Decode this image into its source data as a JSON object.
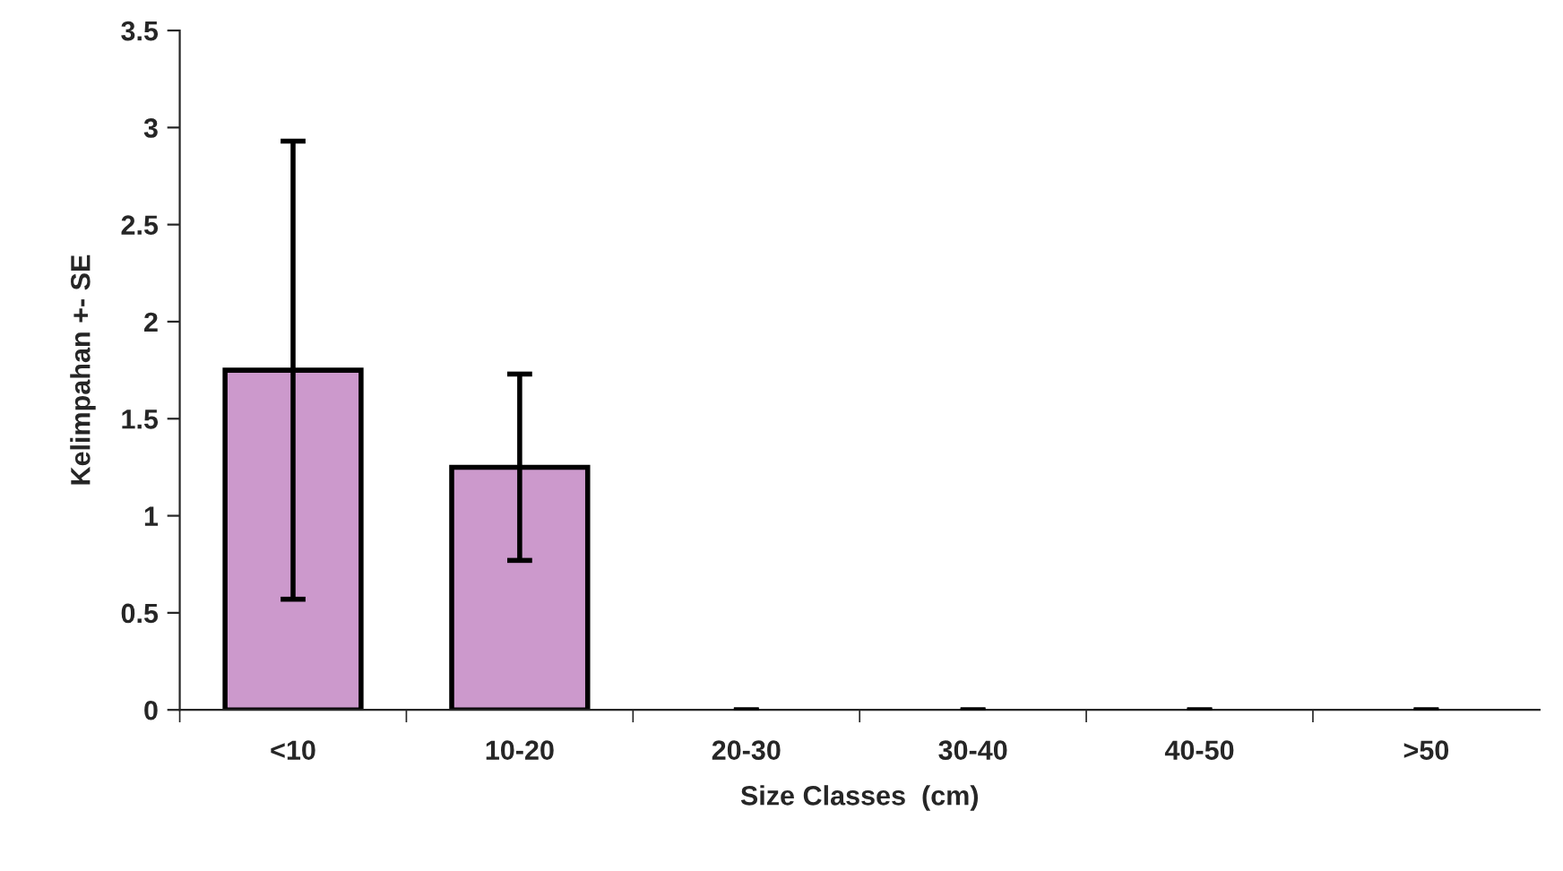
{
  "chart_data": {
    "type": "bar",
    "xlabel": "Size Classes  (cm)",
    "ylabel": "Kelimpahan +- SE",
    "categories": [
      "<10",
      "10-20",
      "20-30",
      "30-40",
      "40-50",
      ">50"
    ],
    "values": [
      1.75,
      1.25,
      0,
      0,
      0,
      0
    ],
    "errors": [
      1.18,
      0.48,
      0,
      0,
      0,
      0
    ],
    "color": "#cc99cc",
    "ylim": [
      0,
      3.5
    ],
    "yticks": [
      0,
      0.5,
      1,
      1.5,
      2,
      2.5,
      3,
      3.5
    ],
    "grid": false
  }
}
